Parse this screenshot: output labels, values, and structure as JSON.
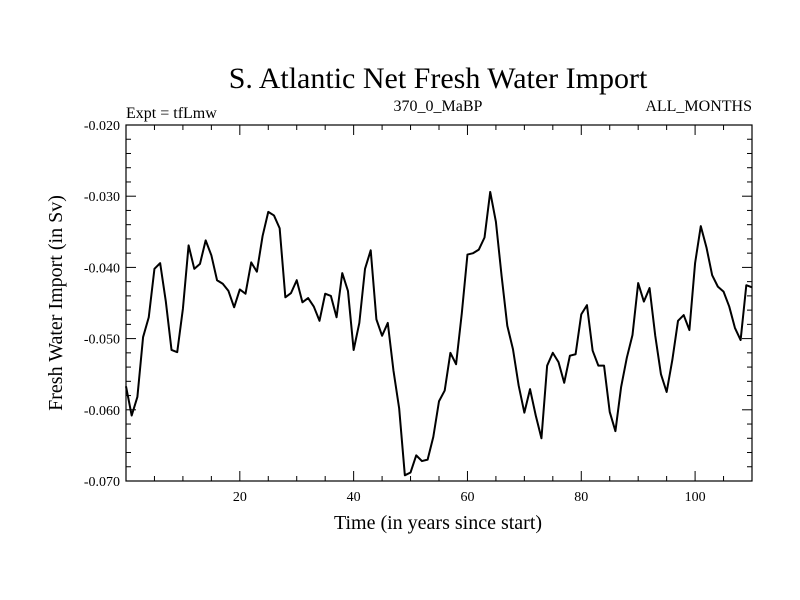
{
  "chart_data": {
    "type": "line",
    "title": "S. Atlantic Net Fresh Water Import",
    "subtitle_left": "Expt = tfLmw",
    "subtitle_center": "370_0_MaBP",
    "subtitle_right": "ALL_MONTHS",
    "xlabel": "Time (in years since start)",
    "ylabel": "Fresh Water Import (in Sv)",
    "xlim": [
      0,
      110
    ],
    "ylim": [
      -0.07,
      -0.02
    ],
    "xticks": [
      20,
      40,
      60,
      80,
      100
    ],
    "xtick_labels": [
      "20",
      "40",
      "60",
      "80",
      "100"
    ],
    "yticks": [
      -0.07,
      -0.06,
      -0.05,
      -0.04,
      -0.03,
      -0.02
    ],
    "ytick_labels": [
      "-0.070",
      "-0.060",
      "-0.050",
      "-0.040",
      "-0.030",
      "-0.020"
    ],
    "grid": false,
    "series": [
      {
        "name": "Net Fresh Water Import",
        "x": [
          0,
          1,
          2,
          3,
          4,
          5,
          6,
          7,
          8,
          9,
          10,
          11,
          12,
          13,
          14,
          15,
          16,
          17,
          18,
          19,
          20,
          21,
          22,
          23,
          24,
          25,
          26,
          27,
          28,
          29,
          30,
          31,
          32,
          33,
          34,
          35,
          36,
          37,
          38,
          39,
          40,
          41,
          42,
          43,
          44,
          45,
          46,
          47,
          48,
          49,
          50,
          51,
          52,
          53,
          54,
          55,
          56,
          57,
          58,
          59,
          60,
          61,
          62,
          63,
          64,
          65,
          66,
          67,
          68,
          69,
          70,
          71,
          72,
          73,
          74,
          75,
          76,
          77,
          78,
          79,
          80,
          81,
          82,
          83,
          84,
          85,
          86,
          87,
          88,
          89,
          90,
          91,
          92,
          93,
          94,
          95,
          96,
          97,
          98,
          99,
          100,
          101,
          102,
          103,
          104,
          105,
          106,
          107,
          108,
          109,
          110
        ],
        "y": [
          -0.0567,
          -0.0608,
          -0.0582,
          -0.0498,
          -0.047,
          -0.0402,
          -0.0394,
          -0.0448,
          -0.0516,
          -0.0519,
          -0.0458,
          -0.0369,
          -0.0402,
          -0.0395,
          -0.0362,
          -0.0383,
          -0.0418,
          -0.0423,
          -0.0433,
          -0.0456,
          -0.0431,
          -0.0437,
          -0.0393,
          -0.0406,
          -0.0356,
          -0.0322,
          -0.0327,
          -0.0345,
          -0.0442,
          -0.0436,
          -0.0418,
          -0.0449,
          -0.0443,
          -0.0455,
          -0.0475,
          -0.0437,
          -0.044,
          -0.047,
          -0.0408,
          -0.0433,
          -0.0516,
          -0.0478,
          -0.0402,
          -0.0376,
          -0.0473,
          -0.0496,
          -0.0478,
          -0.0545,
          -0.0598,
          -0.0692,
          -0.0688,
          -0.0664,
          -0.0672,
          -0.067,
          -0.0638,
          -0.0588,
          -0.0573,
          -0.052,
          -0.0536,
          -0.0465,
          -0.0382,
          -0.038,
          -0.0375,
          -0.0358,
          -0.0294,
          -0.0336,
          -0.0412,
          -0.0482,
          -0.0515,
          -0.0566,
          -0.0604,
          -0.0571,
          -0.0608,
          -0.064,
          -0.0538,
          -0.052,
          -0.0533,
          -0.0562,
          -0.0524,
          -0.0522,
          -0.0466,
          -0.0453,
          -0.0517,
          -0.0538,
          -0.0538,
          -0.0603,
          -0.063,
          -0.0568,
          -0.0527,
          -0.0495,
          -0.0422,
          -0.0448,
          -0.0429,
          -0.0496,
          -0.055,
          -0.0575,
          -0.053,
          -0.0475,
          -0.0467,
          -0.0488,
          -0.0394,
          -0.0342,
          -0.0372,
          -0.0411,
          -0.0427,
          -0.0434,
          -0.0455,
          -0.0485,
          -0.0502,
          -0.0425,
          -0.0428
        ]
      }
    ]
  }
}
